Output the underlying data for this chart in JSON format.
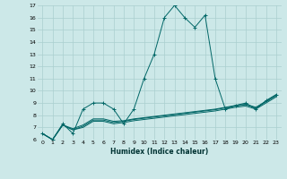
{
  "xlabel": "Humidex (Indice chaleur)",
  "ylabel": "",
  "bg_color": "#cce8e8",
  "grid_color": "#aacfcf",
  "line_color": "#006666",
  "xlim": [
    -0.5,
    23.5
  ],
  "ylim": [
    6,
    17
  ],
  "yticks": [
    6,
    7,
    8,
    9,
    10,
    11,
    12,
    13,
    14,
    15,
    16,
    17
  ],
  "xticks": [
    0,
    1,
    2,
    3,
    4,
    5,
    6,
    7,
    8,
    9,
    10,
    11,
    12,
    13,
    14,
    15,
    16,
    17,
    18,
    19,
    20,
    21,
    22,
    23
  ],
  "series": [
    {
      "x": [
        0,
        1,
        2,
        3,
        4,
        5,
        6,
        7,
        8,
        9,
        10,
        11,
        12,
        13,
        14,
        15,
        16,
        17,
        18,
        19,
        20,
        21,
        22,
        23
      ],
      "y": [
        6.5,
        6.0,
        7.3,
        6.5,
        8.5,
        9.0,
        9.0,
        8.5,
        7.3,
        8.5,
        11.0,
        13.0,
        16.0,
        17.0,
        16.0,
        15.2,
        16.2,
        11.0,
        8.5,
        8.8,
        9.0,
        8.5,
        9.2,
        9.7
      ],
      "marker": "+"
    },
    {
      "x": [
        0,
        1,
        2,
        3,
        4,
        5,
        6,
        7,
        8,
        9,
        10,
        11,
        12,
        13,
        14,
        15,
        16,
        17,
        18,
        19,
        20,
        21,
        22,
        23
      ],
      "y": [
        6.5,
        6.0,
        7.2,
        6.8,
        7.0,
        7.5,
        7.5,
        7.3,
        7.4,
        7.55,
        7.65,
        7.75,
        7.85,
        7.95,
        8.05,
        8.15,
        8.25,
        8.35,
        8.5,
        8.65,
        8.75,
        8.5,
        9.0,
        9.5
      ],
      "marker": null
    },
    {
      "x": [
        0,
        1,
        2,
        3,
        4,
        5,
        6,
        7,
        8,
        9,
        10,
        11,
        12,
        13,
        14,
        15,
        16,
        17,
        18,
        19,
        20,
        21,
        22,
        23
      ],
      "y": [
        6.5,
        6.0,
        7.2,
        6.8,
        7.1,
        7.6,
        7.6,
        7.4,
        7.5,
        7.65,
        7.75,
        7.85,
        7.95,
        8.05,
        8.15,
        8.25,
        8.35,
        8.45,
        8.6,
        8.75,
        8.85,
        8.6,
        9.1,
        9.6
      ],
      "marker": null
    },
    {
      "x": [
        0,
        1,
        2,
        3,
        4,
        5,
        6,
        7,
        8,
        9,
        10,
        11,
        12,
        13,
        14,
        15,
        16,
        17,
        18,
        19,
        20,
        21,
        22,
        23
      ],
      "y": [
        6.5,
        6.0,
        7.2,
        6.9,
        7.2,
        7.7,
        7.7,
        7.5,
        7.55,
        7.7,
        7.8,
        7.9,
        8.0,
        8.1,
        8.2,
        8.3,
        8.4,
        8.5,
        8.65,
        8.8,
        8.9,
        8.65,
        9.15,
        9.65
      ],
      "marker": null
    }
  ]
}
